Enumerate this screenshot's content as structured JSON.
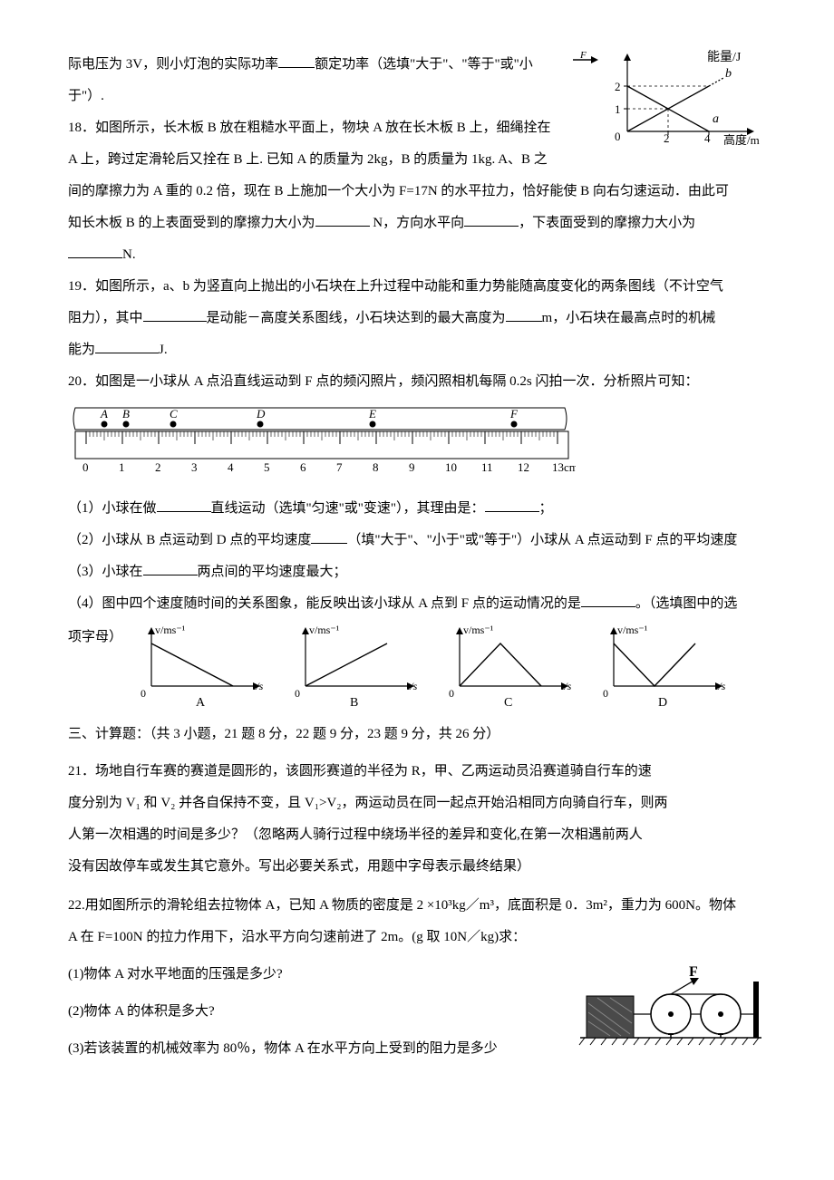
{
  "q17_tail": {
    "line1_a": "际电压为 3V，则小灯泡的实际功率",
    "line1_b": "额定功率（选填\"大于\"、\"等于\"或\"小",
    "line2": "于\"）."
  },
  "energy_graph": {
    "ylabel": "能量/J",
    "xlabel": "高度/m",
    "yticks": [
      "1",
      "2"
    ],
    "xticks": [
      "2",
      "4"
    ],
    "labels": [
      "a",
      "b"
    ],
    "axis_color": "#000000"
  },
  "q18": {
    "t1": "18．如图所示，长木板 B 放在粗糙水平面上，物块 A 放在长木板 B 上，细绳拴在",
    "t2": "A 上，跨过定滑轮后又拴在 B 上. 已知 A 的质量为 2kg，B 的质量为 1kg. A、B 之",
    "t3a": "间的摩擦力为 A 重的 0.2 倍，现在 B 上施加一个大小为 F=17N 的水平拉力，恰好能使 B 向右匀速运动．由此可",
    "t4a": "知长木板 B 的上表面受到的摩擦力大小为",
    "t4b": " N，方向水平向",
    "t4c": "，下表面受到的摩擦力大小为",
    "t5": "N."
  },
  "q19": {
    "t1": "19．如图所示，a、b 为竖直向上抛出的小石块在上升过程中动能和重力势能随高度变化的两条图线（不计空气",
    "t2a": "阻力），其中",
    "t2b": "是动能－高度关系图线，小石块达到的最大高度为",
    "t2c": "m，小石块在最高点时的机械",
    "t3a": "能为",
    "t3b": "J."
  },
  "q20": {
    "intro": "20．如图是一小球从 A 点沿直线运动到 F 点的频闪照片，频闪照相机每隔 0.2s 闪拍一次．分析照片可知：",
    "ruler": {
      "points": [
        "A",
        "B",
        "C",
        "D",
        "E",
        "F"
      ],
      "point_x": [
        0.5,
        1.1,
        2.4,
        4.8,
        7.9,
        11.8
      ],
      "ticks": [
        "0",
        "1",
        "2",
        "3",
        "4",
        "5",
        "6",
        "7",
        "8",
        "9",
        "10",
        "11",
        "12",
        "13cm"
      ],
      "bg": "#e8e8d8",
      "line_color": "#000000"
    },
    "p1a": "（1）小球在做",
    "p1b": "直线运动（选填\"匀速\"或\"变速\"），其理由是：",
    "p1c": "；",
    "p2a": "（2）小球从 B 点运动到 D 点的平均速度",
    "p2b": "（填\"大于\"、\"小于\"或\"等于\"）小球从 A 点运动到 F 点的平均速度",
    "p3a": "（3）小球在",
    "p3b": "两点间的平均速度最大；",
    "p4a": "（4）图中四个速度随时间的关系图象，能反映出该小球从 A 点到 F 点的运动情况的是",
    "p4b": "。（选填图中的选",
    "p4c": "项字母）",
    "graphs": {
      "ylabel": "v/ms⁻¹",
      "xlabel": "t/s",
      "options": [
        "A",
        "B",
        "C",
        "D"
      ],
      "types": [
        "down",
        "up",
        "updown",
        "downup"
      ],
      "axis_color": "#000000"
    }
  },
  "section3": {
    "title": "三、计算题：（共 3 小题，21 题 8 分，22 题 9 分，23 题 9 分，共 26 分）"
  },
  "q21": {
    "t1": "21．场地自行车赛的赛道是圆形的，该圆形赛道的半径为 R，甲、乙两运动员沿赛道骑自行车的速",
    "t2": "度分别为 V₁ 和 V₂ 并各自保持不变，且 V₁>V₂，两运动员在同一起点开始沿相同方向骑自行车，则两",
    "t3": "人第一次相遇的时间是多少？（忽略两人骑行过程中绕场半径的差异和变化,在第一次相遇前两人",
    "t4": "没有因故停车或发生其它意外。写出必要关系式，用题中字母表示最终结果）"
  },
  "q22": {
    "t1": "22.用如图所示的滑轮组去拉物体 A，已知 A 物质的密度是 2 ×10³kg／m³，底面积是 0．3m²，重力为 600N。物体",
    "t2": "A 在 F=100N 的拉力作用下，沿水平方向匀速前进了 2m。(g 取 10N／kg)求：",
    "p1": "(1)物体 A 对水平地面的压强是多少?",
    "p2": "(2)物体 A 的体积是多大?",
    "p3": "(3)若该装置的机械效率为 80％，物体 A 在水平方向上受到的阻力是多少",
    "pulley": {
      "force_label": "F",
      "line_color": "#000000"
    }
  }
}
